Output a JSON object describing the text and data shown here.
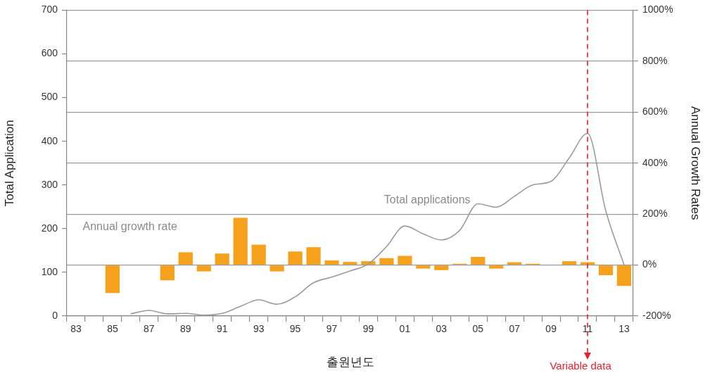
{
  "chart_data": {
    "type": "bar",
    "xlabel": "출원년도",
    "ylabel": "Total Application",
    "y2label": "Annual Growth Rates",
    "categories": [
      "83",
      null,
      "85",
      null,
      "87",
      null,
      "89",
      null,
      "91",
      null,
      "93",
      null,
      "95",
      null,
      "97",
      null,
      "99",
      null,
      "01",
      null,
      "03",
      null,
      "05",
      null,
      "07",
      null,
      "09",
      null,
      "11",
      null,
      "13"
    ],
    "series": [
      {
        "name": "Annual growth rate",
        "type": "bar",
        "axis": "y2",
        "color": "#f5a11c",
        "values": [
          null,
          null,
          -110,
          null,
          null,
          -60,
          50,
          -25,
          45,
          185,
          80,
          -25,
          53,
          70,
          18,
          12,
          15,
          27,
          36,
          -14,
          -20,
          5,
          32,
          -14,
          11,
          5,
          null,
          15,
          11,
          -40,
          -82
        ]
      },
      {
        "name": "Total applications",
        "type": "line",
        "color": "#9a9a9a",
        "values": [
          null,
          null,
          null,
          5,
          13,
          5,
          6,
          2,
          6,
          22,
          37,
          27,
          44,
          76,
          89,
          103,
          119,
          159,
          206,
          188,
          174,
          196,
          257,
          249,
          274,
          300,
          308,
          362,
          418,
          240,
          117
        ]
      }
    ],
    "ylim": [
      0,
      700
    ],
    "yticks": [
      0,
      100,
      200,
      300,
      400,
      500,
      600,
      700
    ],
    "y2lim": [
      -200,
      1000
    ],
    "y2ticks": [
      {
        "value": -200,
        "label": "-200%"
      },
      {
        "value": 0,
        "label": "0%"
      },
      {
        "value": 200,
        "label": "200%"
      },
      {
        "value": 400,
        "label": "400%"
      },
      {
        "value": 600,
        "label": "600%"
      },
      {
        "value": 800,
        "label": "800%"
      },
      {
        "value": 1000,
        "label": "1000%"
      }
    ],
    "ref_lines": [
      {
        "axis": "x",
        "value": "11",
        "label": "Variable data",
        "color": "#e8202a",
        "line_style": "dashed"
      }
    ],
    "grid": "y",
    "legend": false,
    "marker": "none",
    "line_style": "solid"
  }
}
